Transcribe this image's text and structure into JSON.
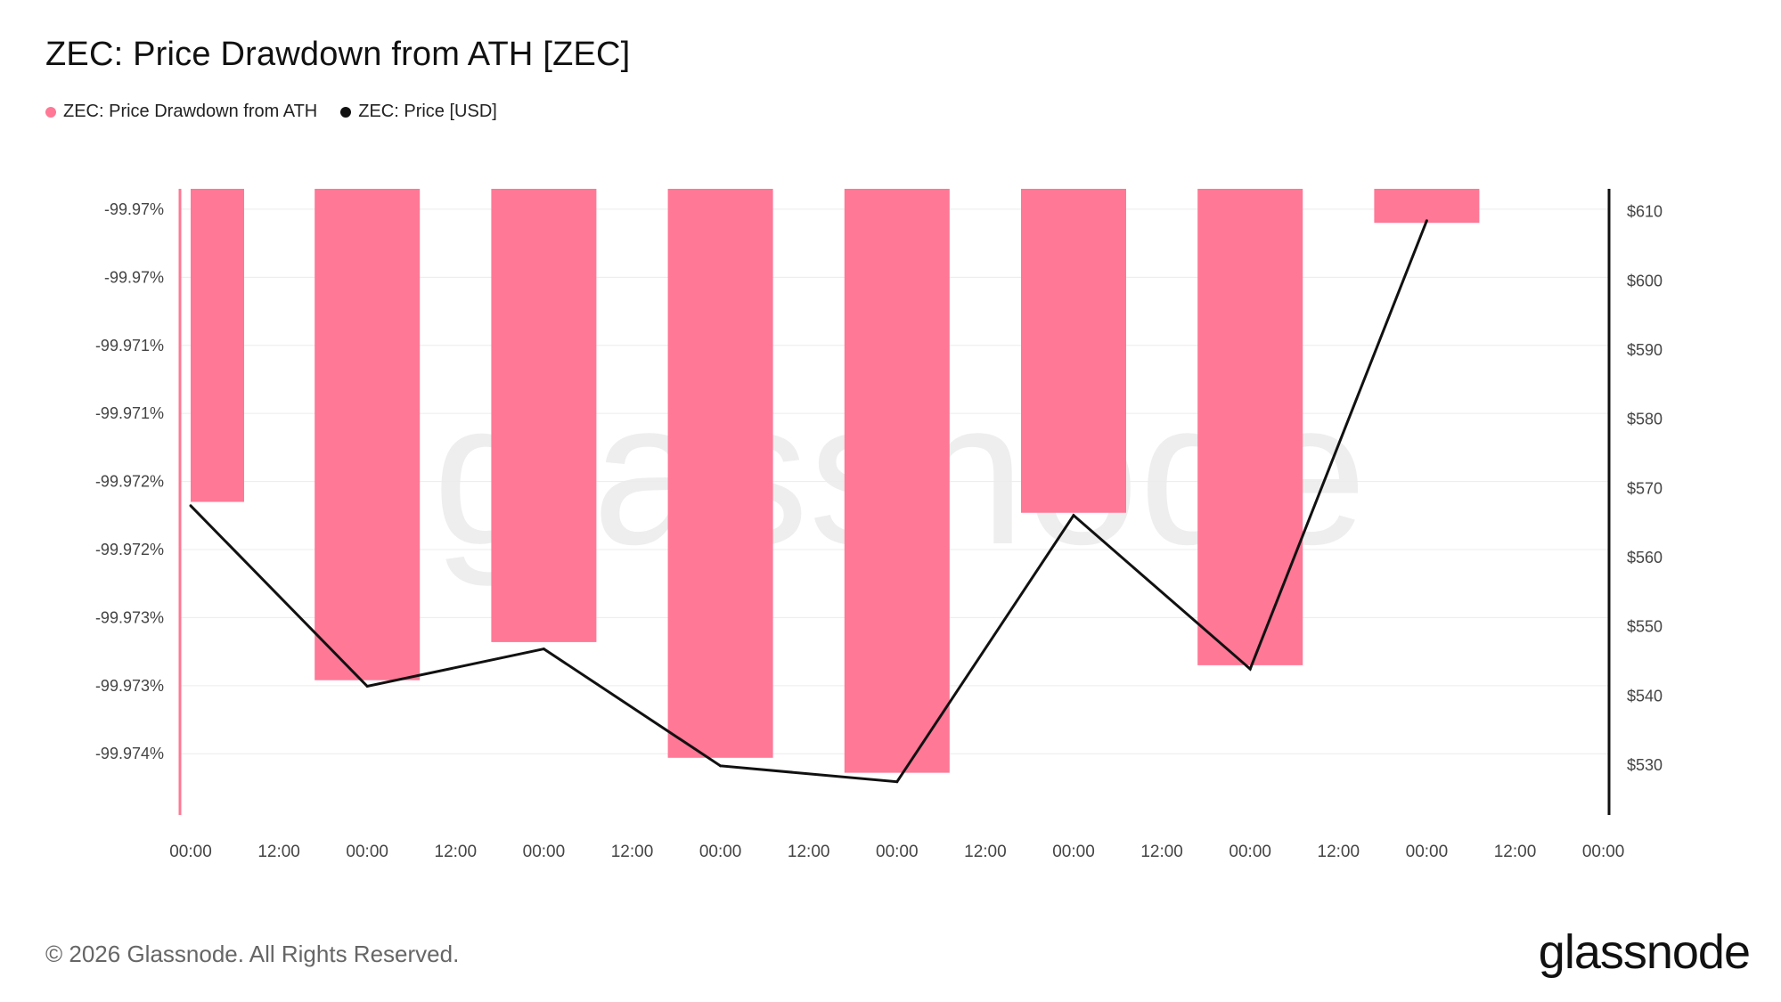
{
  "title": "ZEC: Price Drawdown from ATH [ZEC]",
  "legend": [
    {
      "label": "ZEC: Price Drawdown from ATH",
      "color": "#ff7896"
    },
    {
      "label": "ZEC: Price [USD]",
      "color": "#111111"
    }
  ],
  "watermark": "glassnode",
  "footer": "© 2026 Glassnode. All Rights Reserved.",
  "logo": "glassnode",
  "chart_data": {
    "type": "bar+line",
    "x_tick_labels": [
      "00:00",
      "12:00",
      "00:00",
      "12:00",
      "00:00",
      "12:00",
      "00:00",
      "12:00",
      "00:00",
      "12:00",
      "00:00",
      "12:00",
      "00:00",
      "12:00",
      "00:00",
      "12:00",
      "00:00"
    ],
    "left_axis": {
      "tick_labels": [
        "-99.97%",
        "-99.97%",
        "-99.971%",
        "-99.971%",
        "-99.972%",
        "-99.972%",
        "-99.973%",
        "-99.973%",
        "-99.974%"
      ],
      "tick_values": [
        -99.9698,
        -99.9703,
        -99.9708,
        -99.9713,
        -99.9718,
        -99.9723,
        -99.9728,
        -99.9733,
        -99.9738
      ],
      "range": [
        -99.97425,
        -99.96965
      ],
      "inverted": true
    },
    "right_axis": {
      "tick_labels": [
        "$610",
        "$600",
        "$590",
        "$580",
        "$570",
        "$560",
        "$550",
        "$540",
        "$530"
      ],
      "tick_values": [
        610,
        600,
        590,
        580,
        570,
        560,
        550,
        540,
        530
      ],
      "range": [
        522.8,
        613.3
      ]
    },
    "series": [
      {
        "name": "ZEC: Price Drawdown from ATH",
        "kind": "bar",
        "color": "#ff7896",
        "values": [
          -99.97195,
          -99.97326,
          -99.97298,
          -99.97383,
          -99.97394,
          -99.97203,
          -99.97315,
          -99.9699
        ]
      },
      {
        "name": "ZEC: Price [USD]",
        "kind": "line",
        "color": "#111111",
        "values": [
          567.5,
          541.4,
          546.8,
          529.9,
          527.6,
          566.1,
          543.9,
          608.7
        ]
      }
    ],
    "grid": true
  }
}
